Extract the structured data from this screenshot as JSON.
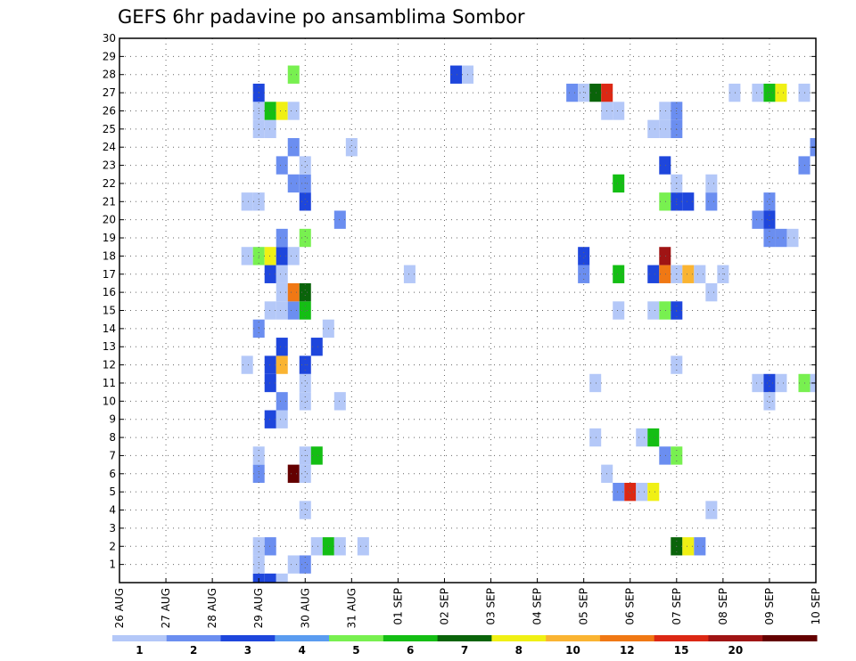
{
  "chart_data": {
    "type": "heatmap",
    "title": "GEFS 6hr padavine po ansamblima Sombor",
    "xlabel": "",
    "ylabel": "",
    "x_ticks": [
      "26 AUG",
      "27 AUG",
      "28 AUG",
      "29 AUG",
      "30 AUG",
      "31 AUG",
      "01 SEP",
      "02 SEP",
      "03 SEP",
      "04 SEP",
      "05 SEP",
      "06 SEP",
      "07 SEP",
      "08 SEP",
      "09 SEP",
      "10 SEP"
    ],
    "y_ticks": [
      1,
      2,
      3,
      4,
      5,
      6,
      7,
      8,
      9,
      10,
      11,
      12,
      13,
      14,
      15,
      16,
      17,
      18,
      19,
      20,
      21,
      22,
      23,
      24,
      25,
      26,
      27,
      28,
      29,
      30
    ],
    "xlim_days": [
      0,
      15
    ],
    "ylim": [
      0,
      30
    ],
    "grid": true,
    "legend": {
      "placement": "bottom",
      "labels": [
        "1",
        "2",
        "3",
        "4",
        "5",
        "6",
        "7",
        "8",
        "10",
        "12",
        "15",
        "20"
      ],
      "colors": [
        "#b4c8f8",
        "#6b8ef0",
        "#1e46dc",
        "#5a9cf0",
        "#78f050",
        "#14be14",
        "#0a640a",
        "#f0f014",
        "#fab432",
        "#f07814",
        "#dc2814",
        "#a01414",
        "#640000"
      ]
    },
    "level_colors": [
      "#b4c8f8",
      "#6b8ef0",
      "#1e46dc",
      "#78f050",
      "#14be14",
      "#0a640a",
      "#f0f014",
      "#fab432",
      "#f07814",
      "#dc2814",
      "#a01414",
      "#640000"
    ],
    "cells": [
      {
        "t": 3.0,
        "m": 0,
        "c": 2
      },
      {
        "t": 3.25,
        "m": 0,
        "c": 2
      },
      {
        "t": 3.5,
        "m": 0,
        "c": 0
      },
      {
        "t": 3.0,
        "m": 1,
        "c": 0
      },
      {
        "t": 3.75,
        "m": 1,
        "c": 0
      },
      {
        "t": 4.0,
        "m": 1,
        "c": 1
      },
      {
        "t": 3.0,
        "m": 2,
        "c": 0
      },
      {
        "t": 3.25,
        "m": 2,
        "c": 1
      },
      {
        "t": 4.25,
        "m": 2,
        "c": 0
      },
      {
        "t": 4.5,
        "m": 2,
        "c": 4
      },
      {
        "t": 4.75,
        "m": 2,
        "c": 0
      },
      {
        "t": 5.25,
        "m": 2,
        "c": 0
      },
      {
        "t": 12.0,
        "m": 2,
        "c": 5
      },
      {
        "t": 12.25,
        "m": 2,
        "c": 6
      },
      {
        "t": 12.5,
        "m": 2,
        "c": 1
      },
      {
        "t": 4.0,
        "m": 4,
        "c": 0
      },
      {
        "t": 12.75,
        "m": 4,
        "c": 0
      },
      {
        "t": 10.75,
        "m": 5,
        "c": 1
      },
      {
        "t": 11.0,
        "m": 5,
        "c": 9
      },
      {
        "t": 11.25,
        "m": 5,
        "c": 0
      },
      {
        "t": 11.5,
        "m": 5,
        "c": 6
      },
      {
        "t": 3.0,
        "m": 6,
        "c": 1
      },
      {
        "t": 3.75,
        "m": 6,
        "c": 11
      },
      {
        "t": 4.0,
        "m": 6,
        "c": 0
      },
      {
        "t": 10.5,
        "m": 6,
        "c": 0
      },
      {
        "t": 3.0,
        "m": 7,
        "c": 0
      },
      {
        "t": 4.0,
        "m": 7,
        "c": 0
      },
      {
        "t": 4.25,
        "m": 7,
        "c": 4
      },
      {
        "t": 11.75,
        "m": 7,
        "c": 1
      },
      {
        "t": 12.0,
        "m": 7,
        "c": 3
      },
      {
        "t": 10.25,
        "m": 8,
        "c": 0
      },
      {
        "t": 11.25,
        "m": 8,
        "c": 0
      },
      {
        "t": 11.5,
        "m": 8,
        "c": 4
      },
      {
        "t": 3.25,
        "m": 9,
        "c": 2
      },
      {
        "t": 3.5,
        "m": 9,
        "c": 0
      },
      {
        "t": 3.5,
        "m": 10,
        "c": 1
      },
      {
        "t": 4.0,
        "m": 10,
        "c": 0
      },
      {
        "t": 4.75,
        "m": 10,
        "c": 0
      },
      {
        "t": 14.0,
        "m": 10,
        "c": 0
      },
      {
        "t": 3.25,
        "m": 11,
        "c": 2
      },
      {
        "t": 4.0,
        "m": 11,
        "c": 0
      },
      {
        "t": 10.25,
        "m": 11,
        "c": 0
      },
      {
        "t": 13.75,
        "m": 11,
        "c": 0
      },
      {
        "t": 14.0,
        "m": 11,
        "c": 2
      },
      {
        "t": 14.25,
        "m": 11,
        "c": 0
      },
      {
        "t": 14.75,
        "m": 11,
        "c": 3
      },
      {
        "t": 15.0,
        "m": 11,
        "c": 0
      },
      {
        "t": 2.75,
        "m": 12,
        "c": 0
      },
      {
        "t": 3.25,
        "m": 12,
        "c": 2
      },
      {
        "t": 3.5,
        "m": 12,
        "c": 7
      },
      {
        "t": 4.0,
        "m": 12,
        "c": 2
      },
      {
        "t": 12.0,
        "m": 12,
        "c": 0
      },
      {
        "t": 3.5,
        "m": 13,
        "c": 2
      },
      {
        "t": 4.25,
        "m": 13,
        "c": 2
      },
      {
        "t": 3.0,
        "m": 14,
        "c": 1
      },
      {
        "t": 4.5,
        "m": 14,
        "c": 0
      },
      {
        "t": 3.25,
        "m": 15,
        "c": 0
      },
      {
        "t": 3.5,
        "m": 15,
        "c": 0
      },
      {
        "t": 3.75,
        "m": 15,
        "c": 1
      },
      {
        "t": 4.0,
        "m": 15,
        "c": 4
      },
      {
        "t": 10.75,
        "m": 15,
        "c": 0
      },
      {
        "t": 11.5,
        "m": 15,
        "c": 0
      },
      {
        "t": 11.75,
        "m": 15,
        "c": 3
      },
      {
        "t": 12.0,
        "m": 15,
        "c": 2
      },
      {
        "t": 3.5,
        "m": 16,
        "c": 0
      },
      {
        "t": 3.75,
        "m": 16,
        "c": 8
      },
      {
        "t": 4.0,
        "m": 16,
        "c": 5
      },
      {
        "t": 12.75,
        "m": 16,
        "c": 0
      },
      {
        "t": 3.25,
        "m": 17,
        "c": 2
      },
      {
        "t": 3.5,
        "m": 17,
        "c": 0
      },
      {
        "t": 6.25,
        "m": 17,
        "c": 0
      },
      {
        "t": 10.0,
        "m": 17,
        "c": 1
      },
      {
        "t": 10.75,
        "m": 17,
        "c": 4
      },
      {
        "t": 11.5,
        "m": 17,
        "c": 2
      },
      {
        "t": 11.75,
        "m": 17,
        "c": 8
      },
      {
        "t": 12.0,
        "m": 17,
        "c": 0
      },
      {
        "t": 12.25,
        "m": 17,
        "c": 7
      },
      {
        "t": 12.5,
        "m": 17,
        "c": 0
      },
      {
        "t": 13.0,
        "m": 17,
        "c": 0
      },
      {
        "t": 2.75,
        "m": 18,
        "c": 0
      },
      {
        "t": 3.0,
        "m": 18,
        "c": 3
      },
      {
        "t": 3.25,
        "m": 18,
        "c": 6
      },
      {
        "t": 3.5,
        "m": 18,
        "c": 2
      },
      {
        "t": 3.75,
        "m": 18,
        "c": 0
      },
      {
        "t": 10.0,
        "m": 18,
        "c": 2
      },
      {
        "t": 11.75,
        "m": 18,
        "c": 10
      },
      {
        "t": 3.5,
        "m": 19,
        "c": 1
      },
      {
        "t": 4.0,
        "m": 19,
        "c": 3
      },
      {
        "t": 14.0,
        "m": 19,
        "c": 1
      },
      {
        "t": 14.25,
        "m": 19,
        "c": 1
      },
      {
        "t": 14.5,
        "m": 19,
        "c": 0
      },
      {
        "t": 4.75,
        "m": 20,
        "c": 1
      },
      {
        "t": 13.75,
        "m": 20,
        "c": 1
      },
      {
        "t": 14.0,
        "m": 20,
        "c": 2
      },
      {
        "t": 2.75,
        "m": 21,
        "c": 0
      },
      {
        "t": 3.0,
        "m": 21,
        "c": 0
      },
      {
        "t": 4.0,
        "m": 21,
        "c": 2
      },
      {
        "t": 11.75,
        "m": 21,
        "c": 3
      },
      {
        "t": 12.0,
        "m": 21,
        "c": 2
      },
      {
        "t": 12.25,
        "m": 21,
        "c": 2
      },
      {
        "t": 12.75,
        "m": 21,
        "c": 1
      },
      {
        "t": 14.0,
        "m": 21,
        "c": 1
      },
      {
        "t": 3.75,
        "m": 22,
        "c": 1
      },
      {
        "t": 4.0,
        "m": 22,
        "c": 1
      },
      {
        "t": 10.75,
        "m": 22,
        "c": 4
      },
      {
        "t": 12.0,
        "m": 22,
        "c": 0
      },
      {
        "t": 12.75,
        "m": 22,
        "c": 0
      },
      {
        "t": 3.5,
        "m": 23,
        "c": 1
      },
      {
        "t": 4.0,
        "m": 23,
        "c": 0
      },
      {
        "t": 11.75,
        "m": 23,
        "c": 2
      },
      {
        "t": 14.75,
        "m": 23,
        "c": 1
      },
      {
        "t": 3.75,
        "m": 24,
        "c": 1
      },
      {
        "t": 5.0,
        "m": 24,
        "c": 0
      },
      {
        "t": 15.0,
        "m": 24,
        "c": 1
      },
      {
        "t": 3.0,
        "m": 25,
        "c": 0
      },
      {
        "t": 3.25,
        "m": 25,
        "c": 0
      },
      {
        "t": 11.5,
        "m": 25,
        "c": 0
      },
      {
        "t": 11.75,
        "m": 25,
        "c": 0
      },
      {
        "t": 12.0,
        "m": 25,
        "c": 1
      },
      {
        "t": 3.0,
        "m": 26,
        "c": 0
      },
      {
        "t": 3.25,
        "m": 26,
        "c": 4
      },
      {
        "t": 3.5,
        "m": 26,
        "c": 6
      },
      {
        "t": 3.75,
        "m": 26,
        "c": 0
      },
      {
        "t": 10.5,
        "m": 26,
        "c": 0
      },
      {
        "t": 10.75,
        "m": 26,
        "c": 0
      },
      {
        "t": 11.75,
        "m": 26,
        "c": 0
      },
      {
        "t": 12.0,
        "m": 26,
        "c": 1
      },
      {
        "t": 3.0,
        "m": 27,
        "c": 2
      },
      {
        "t": 9.75,
        "m": 27,
        "c": 1
      },
      {
        "t": 10.0,
        "m": 27,
        "c": 0
      },
      {
        "t": 10.25,
        "m": 27,
        "c": 5
      },
      {
        "t": 10.5,
        "m": 27,
        "c": 9
      },
      {
        "t": 13.25,
        "m": 27,
        "c": 0
      },
      {
        "t": 13.75,
        "m": 27,
        "c": 0
      },
      {
        "t": 14.0,
        "m": 27,
        "c": 4
      },
      {
        "t": 14.25,
        "m": 27,
        "c": 6
      },
      {
        "t": 14.75,
        "m": 27,
        "c": 0
      },
      {
        "t": 3.75,
        "m": 28,
        "c": 3
      },
      {
        "t": 7.25,
        "m": 28,
        "c": 2
      },
      {
        "t": 7.5,
        "m": 28,
        "c": 0
      }
    ]
  }
}
